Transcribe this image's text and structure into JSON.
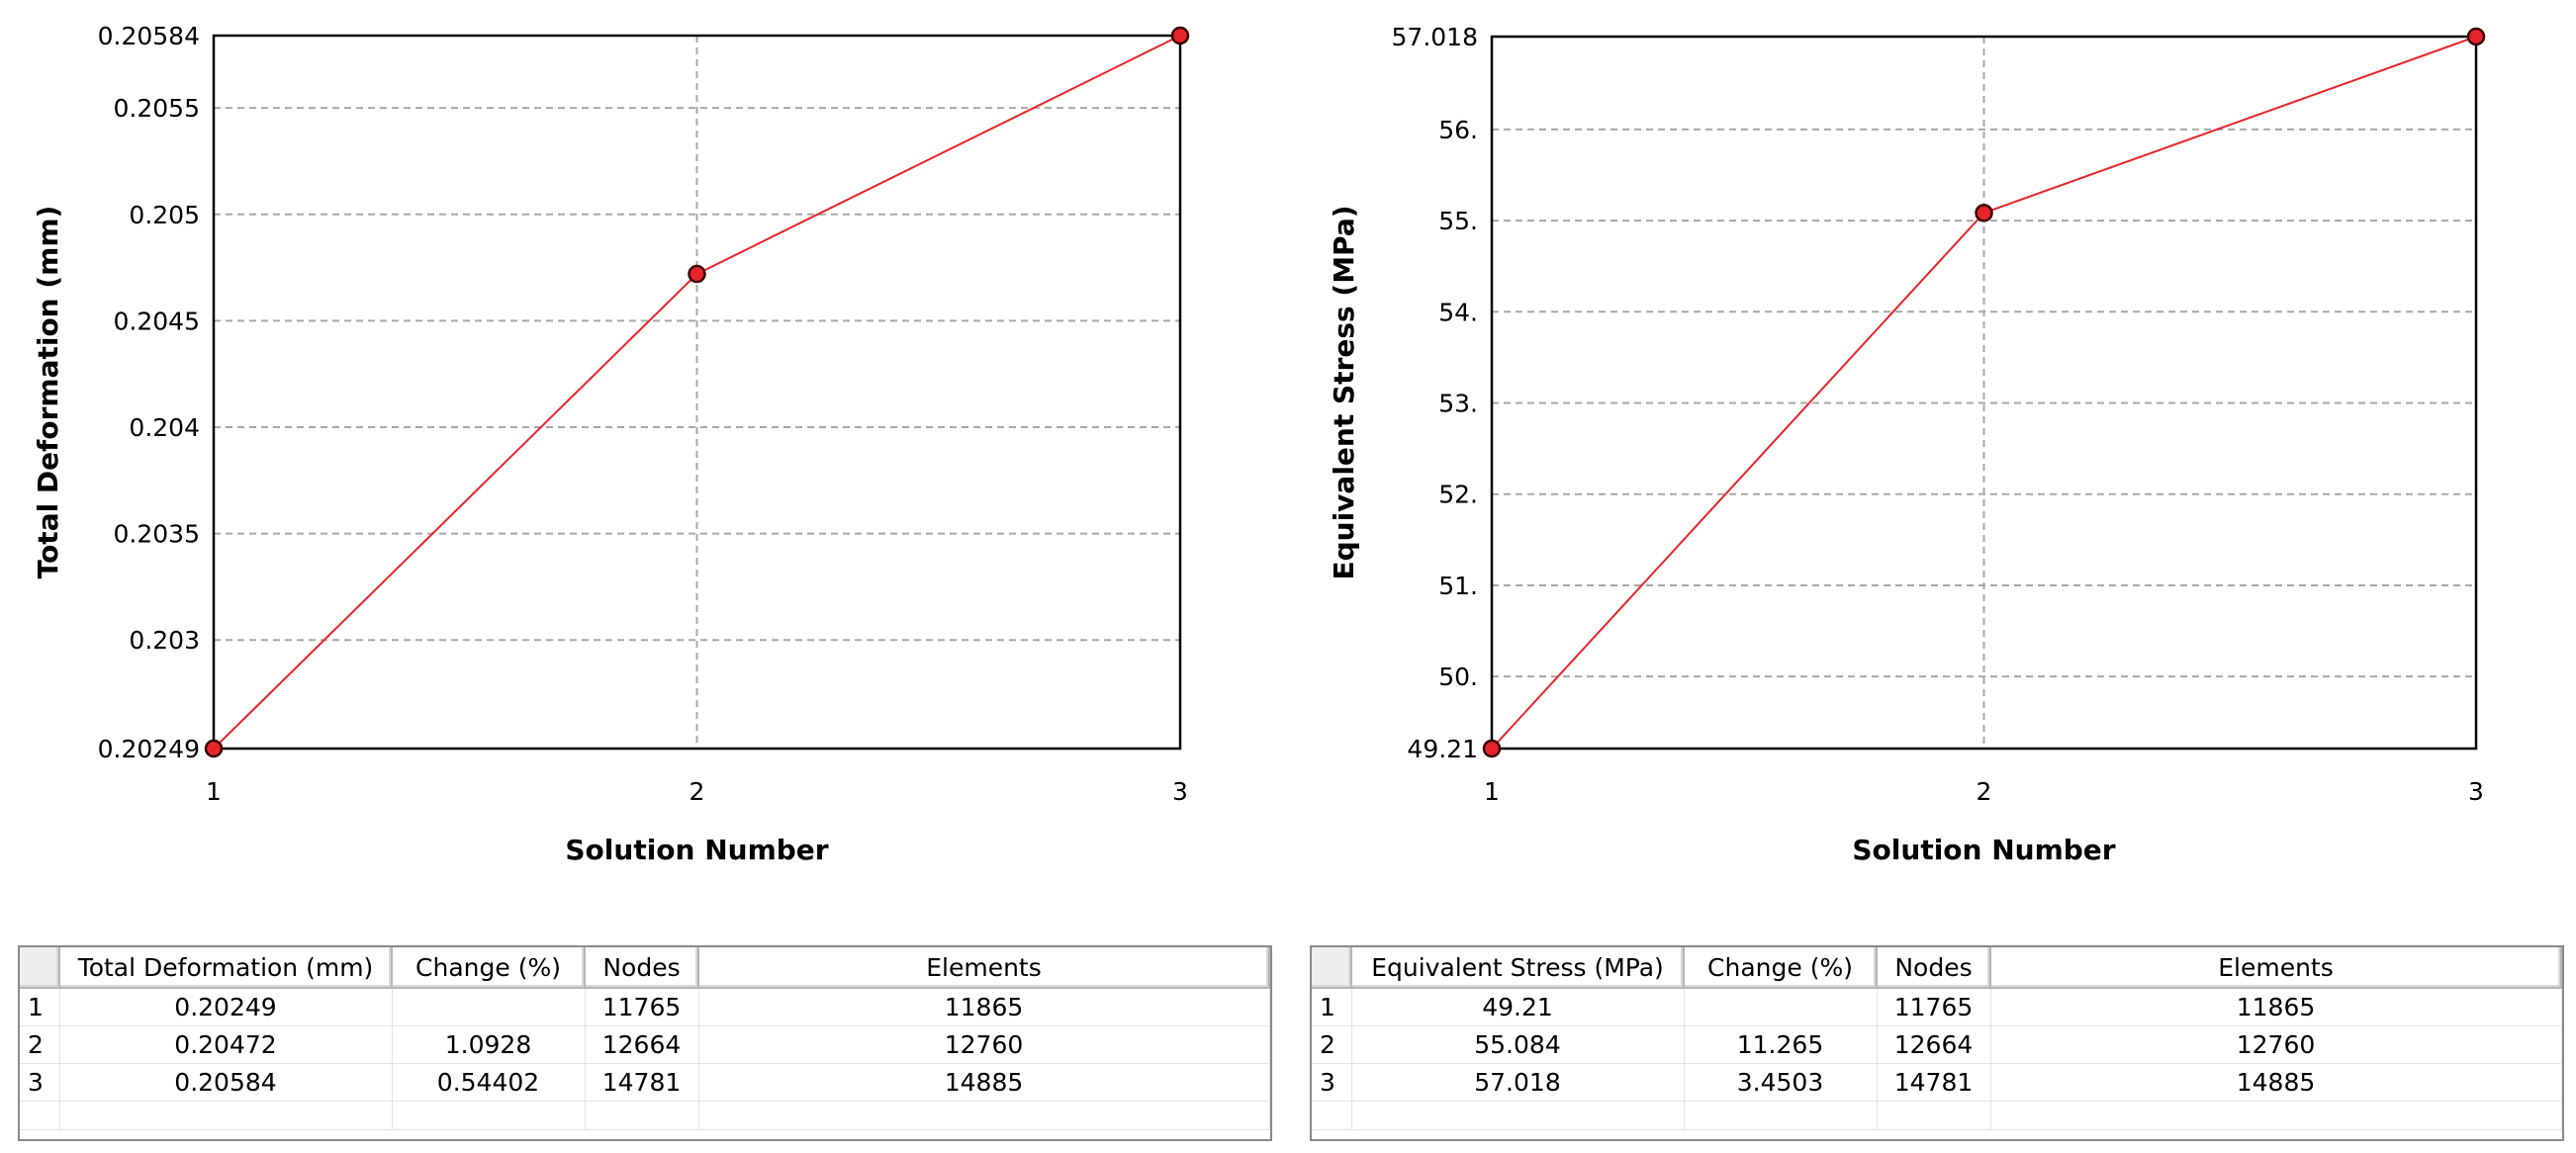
{
  "chart_data": [
    {
      "type": "line",
      "xlabel": "Solution Number",
      "ylabel": "Total Deformation (mm)",
      "x": [
        1,
        2,
        3
      ],
      "x_tick_labels": [
        "1",
        "2",
        "3"
      ],
      "values": [
        0.20249,
        0.20472,
        0.20584
      ],
      "ylim": [
        0.20249,
        0.20584
      ],
      "y_ticks": [
        0.20249,
        0.203,
        0.2035,
        0.204,
        0.2045,
        0.205,
        0.2055,
        0.20584
      ],
      "y_tick_labels": [
        "0.20249",
        "0.203",
        "0.2035",
        "0.204",
        "0.2045",
        "0.205",
        "0.2055",
        "0.20584"
      ],
      "grid": true,
      "line_color": "#e8232a"
    },
    {
      "type": "line",
      "xlabel": "Solution Number",
      "ylabel": "Equivalent Stress (MPa)",
      "x": [
        1,
        2,
        3
      ],
      "x_tick_labels": [
        "1",
        "2",
        "3"
      ],
      "values": [
        49.21,
        55.084,
        57.018
      ],
      "ylim": [
        49.21,
        57.018
      ],
      "y_ticks": [
        49.21,
        50,
        51,
        52,
        53,
        54,
        55,
        56,
        57.018
      ],
      "y_tick_labels": [
        "49.21",
        "50.",
        "51.",
        "52.",
        "53.",
        "54.",
        "55.",
        "56.",
        "57.018"
      ],
      "grid": true,
      "line_color": "#e8232a"
    }
  ],
  "tables": [
    {
      "headers": [
        "",
        "Total Deformation (mm)",
        "Change (%)",
        "Nodes",
        "Elements"
      ],
      "rows": [
        [
          "1",
          "0.20249",
          "",
          "11765",
          "11865"
        ],
        [
          "2",
          "0.20472",
          "1.0928",
          "12664",
          "12760"
        ],
        [
          "3",
          "0.20584",
          "0.54402",
          "14781",
          "14885"
        ]
      ]
    },
    {
      "headers": [
        "",
        "Equivalent Stress (MPa)",
        "Change (%)",
        "Nodes",
        "Elements"
      ],
      "rows": [
        [
          "1",
          "49.21",
          "",
          "11765",
          "11865"
        ],
        [
          "2",
          "55.084",
          "11.265",
          "12664",
          "12760"
        ],
        [
          "3",
          "57.018",
          "3.4503",
          "14781",
          "14885"
        ]
      ]
    }
  ]
}
